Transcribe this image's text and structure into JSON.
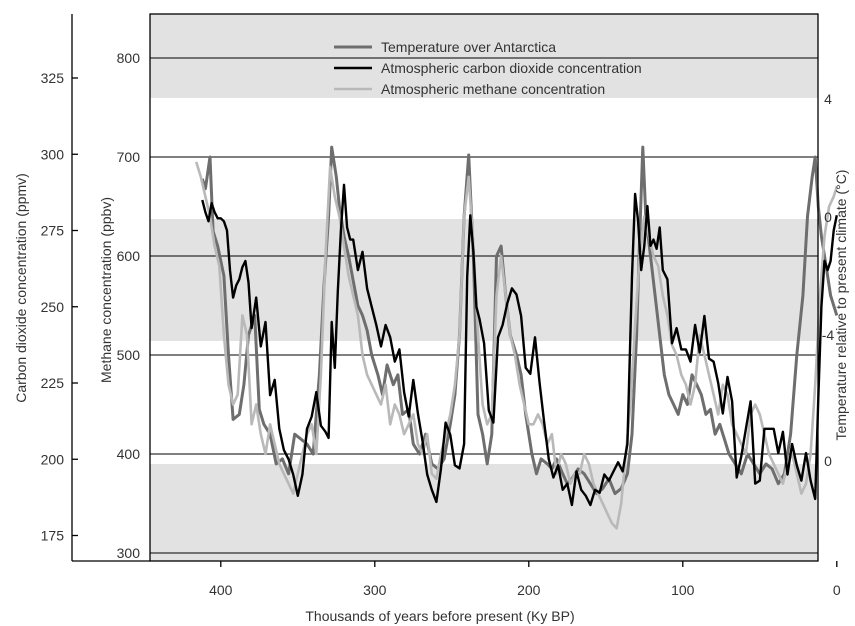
{
  "chart_data": {
    "type": "line",
    "title": "",
    "xlabel": "Thousands of years before present (Ky BP)",
    "ylabel_left_outer": "Carbon dioxide concentration (ppmv)",
    "ylabel_left_inner": "Methane concentration (ppbv)",
    "ylabel_right": "Temperature relative to present climate (°C)",
    "x_ticks": [
      "400",
      "300",
      "200",
      "100",
      "0"
    ],
    "co2_ticks": [
      "325",
      "300",
      "275",
      "250",
      "225",
      "200",
      "175"
    ],
    "ch4_ticks": [
      "800",
      "700",
      "600",
      "500",
      "400",
      "300"
    ],
    "temp_ticks_upper": [
      "4",
      "0",
      "-4"
    ],
    "temp_ticks_lower": [
      "0"
    ],
    "x_reversed": true,
    "xlim": [
      420,
      0
    ],
    "co2_ylim": [
      167,
      338
    ],
    "ch4_ylim": [
      290,
      860
    ],
    "grid": true,
    "legend_position": "top-center",
    "legend": [
      "Temperature over Antarctica",
      "Atmospheric carbon dioxide concentration",
      "Atmospheric methane concentration"
    ],
    "colors": {
      "temperature": "#6e6e6e",
      "co2": "#000000",
      "methane": "#b9b9b9",
      "band": "#e2e2e2",
      "gridline": "#000000"
    },
    "series": [
      {
        "name": "Temperature over Antarctica",
        "axis": "ch4",
        "x": [
          412,
          410,
          407,
          405,
          402,
          398,
          395,
          392,
          388,
          385,
          382,
          378,
          375,
          372,
          368,
          364,
          360,
          356,
          352,
          348,
          344,
          340,
          336,
          333,
          330,
          328,
          325,
          323,
          320,
          317,
          314,
          311,
          308,
          305,
          302,
          298,
          295,
          292,
          288,
          285,
          282,
          278,
          275,
          271,
          267,
          263,
          259,
          255,
          251,
          248,
          245,
          242,
          239,
          236,
          233,
          230,
          227,
          224,
          221,
          218,
          215,
          212,
          208,
          205,
          202,
          198,
          195,
          192,
          188,
          185,
          182,
          178,
          175,
          172,
          168,
          164,
          160,
          156,
          152,
          148,
          144,
          140,
          136,
          133,
          130,
          128,
          126,
          124,
          121,
          118,
          115,
          112,
          109,
          106,
          103,
          100,
          97,
          94,
          91,
          88,
          85,
          82,
          79,
          76,
          73,
          70,
          66,
          62,
          58,
          54,
          50,
          46,
          42,
          38,
          34,
          30,
          26,
          22,
          19,
          16,
          14,
          12,
          10,
          8,
          6,
          4,
          2,
          0
        ],
        "values": [
          678,
          668,
          700,
          625,
          610,
          580,
          500,
          435,
          440,
          470,
          520,
          540,
          445,
          430,
          420,
          390,
          395,
          380,
          420,
          415,
          410,
          400,
          480,
          570,
          640,
          710,
          680,
          650,
          620,
          600,
          575,
          550,
          540,
          525,
          500,
          480,
          460,
          490,
          470,
          480,
          440,
          445,
          410,
          400,
          420,
          390,
          385,
          395,
          430,
          460,
          520,
          640,
          702,
          600,
          440,
          420,
          390,
          420,
          600,
          610,
          560,
          520,
          500,
          480,
          440,
          400,
          380,
          395,
          390,
          385,
          395,
          380,
          370,
          375,
          385,
          380,
          370,
          360,
          365,
          375,
          360,
          365,
          380,
          420,
          520,
          620,
          710,
          640,
          600,
          560,
          520,
          480,
          460,
          450,
          440,
          460,
          450,
          480,
          470,
          460,
          440,
          445,
          420,
          430,
          415,
          400,
          390,
          380,
          400,
          390,
          380,
          390,
          385,
          370,
          380,
          420,
          500,
          560,
          640,
          680,
          700,
          650,
          620,
          600,
          580,
          560,
          550,
          540
        ]
      },
      {
        "name": "Atmospheric carbon dioxide concentration",
        "axis": "co2",
        "x": [
          412,
          410,
          408,
          406,
          404,
          402,
          400,
          398,
          396,
          394,
          392,
          390,
          388,
          386,
          384,
          382,
          380,
          377,
          374,
          371,
          368,
          365,
          362,
          359,
          356,
          353,
          350,
          347,
          344,
          341,
          338,
          335,
          332,
          330,
          328,
          326,
          324,
          322,
          320,
          318,
          316,
          314,
          311,
          308,
          305,
          302,
          299,
          296,
          293,
          290,
          287,
          284,
          281,
          278,
          275,
          272,
          269,
          266,
          263,
          260,
          257,
          254,
          251,
          248,
          245,
          242,
          240,
          238,
          236,
          234,
          232,
          229,
          226,
          223,
          220,
          217,
          214,
          211,
          208,
          205,
          202,
          199,
          196,
          193,
          190,
          187,
          184,
          181,
          178,
          175,
          172,
          169,
          166,
          163,
          160,
          157,
          154,
          151,
          148,
          145,
          142,
          139,
          136,
          133,
          131,
          129,
          127,
          125,
          123,
          121,
          119,
          117,
          115,
          113,
          110,
          107,
          104,
          101,
          98,
          95,
          92,
          89,
          86,
          83,
          80,
          77,
          74,
          71,
          68,
          65,
          62,
          59,
          56,
          53,
          50,
          47,
          44,
          41,
          38,
          35,
          32,
          29,
          26,
          23,
          20,
          17,
          14,
          12,
          10,
          8,
          6,
          4,
          2,
          0
        ],
        "values": [
          285,
          281,
          278,
          284,
          281,
          279,
          279,
          278,
          275,
          262,
          253,
          257,
          259,
          263,
          265,
          258,
          243,
          253,
          237,
          245,
          221,
          226,
          210,
          203,
          200,
          195,
          188,
          195,
          210,
          214,
          222,
          211,
          209,
          207,
          245,
          230,
          255,
          275,
          290,
          276,
          272,
          272,
          262,
          268,
          256,
          250,
          244,
          237,
          244,
          240,
          232,
          236,
          222,
          214,
          226,
          215,
          206,
          195,
          190,
          186,
          197,
          212,
          208,
          198,
          197,
          205,
          260,
          280,
          268,
          250,
          246,
          238,
          216,
          212,
          240,
          244,
          251,
          256,
          254,
          247,
          230,
          228,
          240,
          225,
          212,
          200,
          194,
          198,
          190,
          192,
          185,
          196,
          190,
          188,
          185,
          190,
          189,
          195,
          193,
          196,
          199,
          196,
          205,
          260,
          287,
          278,
          262,
          270,
          283,
          270,
          272,
          269,
          276,
          262,
          259,
          238,
          243,
          236,
          236,
          232,
          244,
          235,
          247,
          233,
          232,
          225,
          215,
          227,
          219,
          194,
          201,
          210,
          219,
          192,
          193,
          210,
          210,
          210,
          202,
          209,
          195,
          205,
          198,
          193,
          202,
          193,
          187,
          220,
          250,
          265,
          262,
          265,
          275,
          280
        ]
      },
      {
        "name": "Atmospheric methane concentration",
        "axis": "ch4",
        "x": [
          416,
          413,
          410,
          407,
          404,
          401,
          398,
          395,
          392,
          389,
          386,
          383,
          380,
          377,
          374,
          371,
          368,
          365,
          362,
          359,
          356,
          353,
          350,
          347,
          344,
          341,
          338,
          335,
          332,
          329,
          326,
          323,
          320,
          317,
          314,
          311,
          308,
          305,
          302,
          299,
          296,
          293,
          290,
          287,
          284,
          281,
          278,
          275,
          272,
          269,
          266,
          263,
          260,
          257,
          254,
          251,
          248,
          245,
          242,
          239,
          236,
          233,
          230,
          227,
          224,
          221,
          218,
          215,
          212,
          209,
          206,
          203,
          200,
          197,
          194,
          191,
          188,
          185,
          182,
          179,
          176,
          173,
          170,
          167,
          164,
          161,
          158,
          155,
          152,
          149,
          146,
          143,
          140,
          137,
          134,
          131,
          128,
          125,
          122,
          119,
          116,
          113,
          110,
          107,
          104,
          101,
          98,
          95,
          92,
          89,
          86,
          83,
          80,
          77,
          74,
          71,
          68,
          65,
          62,
          59,
          56,
          53,
          50,
          47,
          44,
          41,
          38,
          35,
          32,
          29,
          26,
          23,
          20,
          17,
          14,
          11,
          8,
          5,
          2,
          0
        ],
        "values": [
          695,
          680,
          660,
          640,
          610,
          590,
          520,
          470,
          450,
          460,
          540,
          520,
          430,
          450,
          420,
          400,
          430,
          410,
          390,
          380,
          370,
          360,
          380,
          400,
          420,
          430,
          400,
          480,
          600,
          690,
          660,
          640,
          610,
          580,
          560,
          540,
          500,
          480,
          470,
          460,
          450,
          470,
          430,
          450,
          440,
          420,
          430,
          440,
          410,
          400,
          420,
          380,
          375,
          400,
          420,
          440,
          470,
          520,
          640,
          680,
          610,
          520,
          450,
          430,
          440,
          560,
          600,
          560,
          520,
          500,
          470,
          450,
          430,
          430,
          440,
          430,
          410,
          420,
          380,
          400,
          390,
          370,
          380,
          380,
          400,
          390,
          370,
          360,
          350,
          340,
          330,
          325,
          350,
          400,
          450,
          530,
          600,
          640,
          620,
          600,
          590,
          560,
          540,
          510,
          500,
          480,
          470,
          450,
          470,
          520,
          500,
          480,
          460,
          440,
          470,
          460,
          430,
          420,
          410,
          400,
          440,
          450,
          440,
          420,
          400,
          390,
          380,
          370,
          390,
          400,
          380,
          360,
          370,
          400,
          470,
          560,
          620,
          650,
          660,
          670
        ]
      }
    ]
  }
}
